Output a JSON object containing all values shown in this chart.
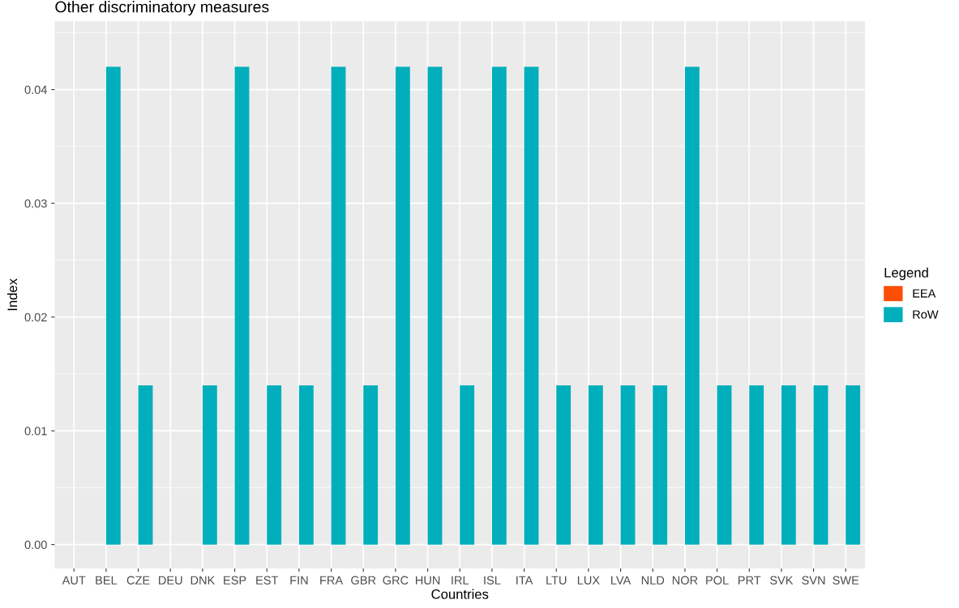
{
  "chart_data": {
    "type": "bar",
    "title": "Other discriminatory measures",
    "xlabel": "Countries",
    "ylabel": "Index",
    "legend_title": "Legend",
    "categories": [
      "AUT",
      "BEL",
      "CZE",
      "DEU",
      "DNK",
      "ESP",
      "EST",
      "FIN",
      "FRA",
      "GBR",
      "GRC",
      "HUN",
      "IRL",
      "ISL",
      "ITA",
      "LTU",
      "LUX",
      "LVA",
      "NLD",
      "NOR",
      "POL",
      "PRT",
      "SVK",
      "SVN",
      "SWE"
    ],
    "series": [
      {
        "name": "EEA",
        "color": "#fc4e07",
        "values": [
          0,
          0,
          0,
          0,
          0,
          0,
          0,
          0,
          0,
          0,
          0,
          0,
          0,
          0,
          0,
          0,
          0,
          0,
          0,
          0,
          0,
          0,
          0,
          0,
          0
        ]
      },
      {
        "name": "RoW",
        "color": "#00afbb",
        "values": [
          0,
          0.042,
          0.014,
          0,
          0.014,
          0.042,
          0.014,
          0.014,
          0.042,
          0.014,
          0.042,
          0.042,
          0.014,
          0.042,
          0.042,
          0.014,
          0.014,
          0.014,
          0.014,
          0.042,
          0.014,
          0.014,
          0.014,
          0.014,
          0.014
        ]
      }
    ],
    "ylim": [
      -0.0021,
      0.046
    ],
    "yticks": [
      {
        "value": 0,
        "label": "0.00"
      },
      {
        "value": 0.01,
        "label": "0.01"
      },
      {
        "value": 0.02,
        "label": "0.02"
      },
      {
        "value": 0.03,
        "label": "0.03"
      },
      {
        "value": 0.04,
        "label": "0.04"
      }
    ],
    "grid": true,
    "legend": "right"
  }
}
